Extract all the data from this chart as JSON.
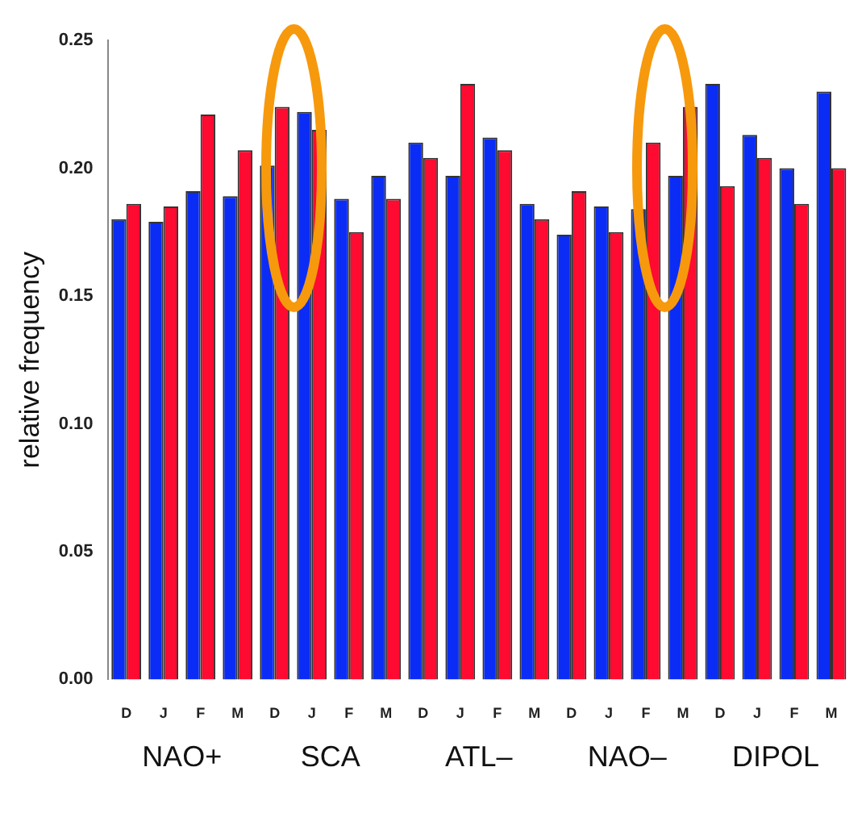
{
  "chart_data": {
    "type": "bar",
    "ylabel": "relative frequency",
    "categories": [
      "D",
      "J",
      "F",
      "M",
      "D",
      "J",
      "F",
      "M",
      "D",
      "J",
      "F",
      "M",
      "D",
      "J",
      "F",
      "M",
      "D",
      "J",
      "F",
      "M"
    ],
    "series": [
      {
        "color": "#0a2cf5",
        "values": [
          0.18,
          0.179,
          0.191,
          0.189,
          0.201,
          0.222,
          0.188,
          0.197,
          0.21,
          0.197,
          0.212,
          0.186,
          0.174,
          0.185,
          0.184,
          0.197,
          0.233,
          0.213,
          0.2,
          0.23
        ]
      },
      {
        "color": "#ff0a30",
        "values": [
          0.186,
          0.185,
          0.221,
          0.207,
          0.224,
          0.215,
          0.175,
          0.188,
          0.204,
          0.233,
          0.207,
          0.18,
          0.191,
          0.175,
          0.21,
          0.224,
          0.193,
          0.204,
          0.186,
          0.2
        ]
      }
    ],
    "annotations": [
      "NAO+",
      "SCA",
      "ATL–",
      "NAO–",
      "DIPOL"
    ],
    "ylim": [
      0,
      0.25
    ],
    "yticks": [
      {
        "value": 0,
        "label": "0.00"
      },
      {
        "value": 0.05,
        "label": "0.05"
      },
      {
        "value": 0.1,
        "label": "0.10"
      },
      {
        "value": 0.15,
        "label": "0.15"
      },
      {
        "value": 0.2,
        "label": "0.20"
      },
      {
        "value": 0.25,
        "label": "0.25"
      }
    ],
    "grid": false,
    "legend": false
  }
}
